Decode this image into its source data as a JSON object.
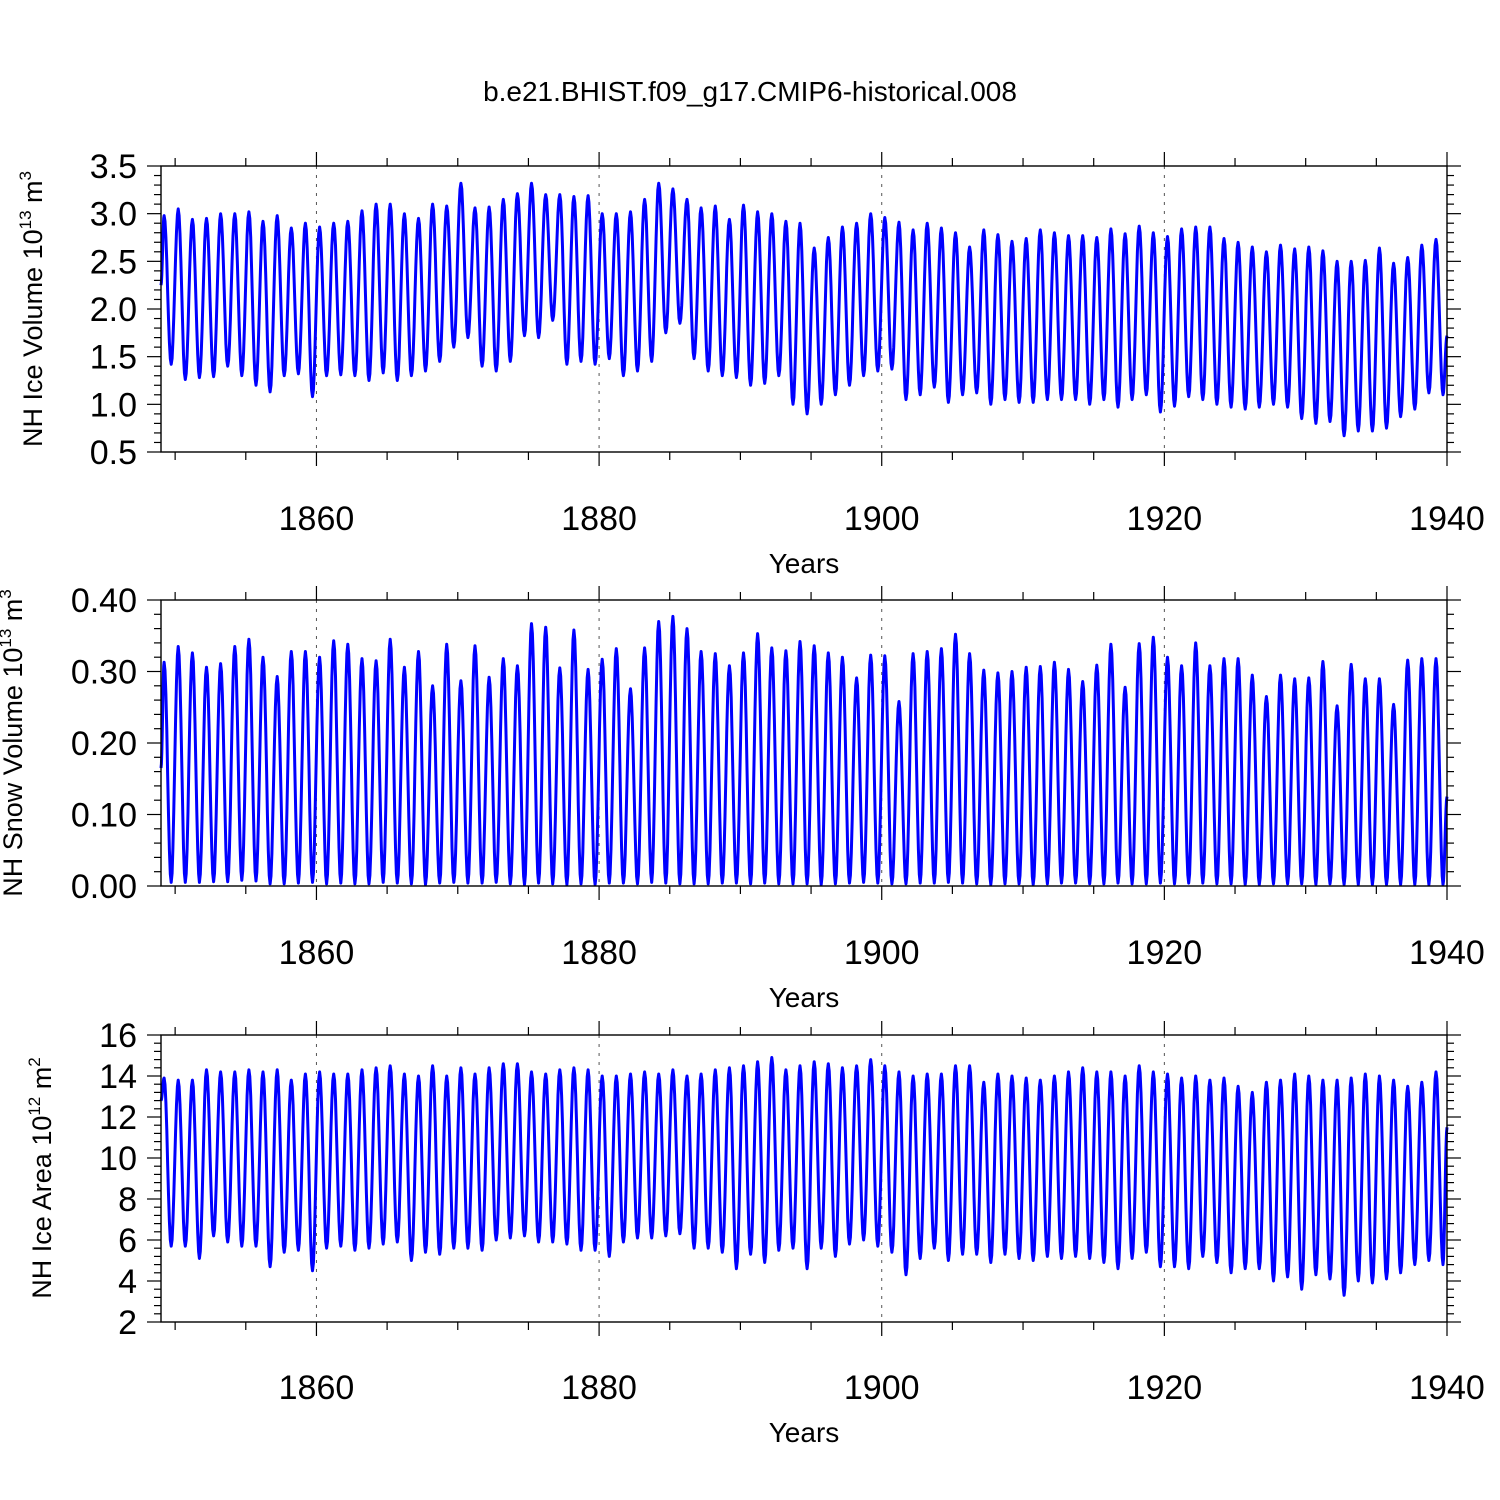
{
  "figure": {
    "title": "b.e21.BHIST.f09_g17.CMIP6-historical.008",
    "series_color": "#0000ff"
  },
  "chart_data": [
    {
      "type": "line",
      "title": "b.e21.BHIST.f09_g17.CMIP6-historical.008",
      "xlabel": "Years",
      "ylabel": {
        "prefix": "NH Ice Volume 10",
        "exponent": "13",
        "middle": " m",
        "unit_exponent": "3"
      },
      "xlim": [
        1849,
        1940
      ],
      "ylim": [
        0.5,
        3.5
      ],
      "xticks": [
        1860,
        1880,
        1900,
        1920,
        1940
      ],
      "xtick_labels": [
        "1860",
        "1880",
        "1900",
        "1920",
        "1940"
      ],
      "yticks": [
        0.5,
        1.0,
        1.5,
        2.0,
        2.5,
        3.0,
        3.5
      ],
      "ytick_labels": [
        "0.5",
        "1.0",
        "1.5",
        "2.0",
        "2.5",
        "3.0",
        "3.5"
      ],
      "grid_x": true,
      "seasonal_cycle": "annual",
      "start": {
        "x": 1849.0,
        "y": 2.25
      },
      "end": {
        "x": 1940.0,
        "y": 1.72
      },
      "annual_max": [
        2.98,
        3.05,
        2.94,
        2.95,
        3.0,
        3.0,
        3.02,
        2.92,
        2.98,
        2.85,
        2.9,
        2.86,
        2.9,
        2.92,
        3.03,
        3.1,
        3.1,
        3.0,
        2.95,
        3.1,
        3.08,
        3.32,
        3.06,
        3.07,
        3.15,
        3.21,
        3.32,
        3.2,
        3.2,
        3.18,
        3.19,
        3.0,
        3.0,
        3.02,
        3.15,
        3.32,
        3.26,
        3.15,
        3.06,
        3.08,
        2.94,
        3.09,
        3.02,
        3.0,
        2.92,
        2.9,
        2.64,
        2.75,
        2.86,
        2.9,
        3.0,
        2.96,
        2.91,
        2.83,
        2.9,
        2.85,
        2.8,
        2.65,
        2.83,
        2.78,
        2.71,
        2.74,
        2.83,
        2.8,
        2.77,
        2.77,
        2.75,
        2.84,
        2.79,
        2.87,
        2.8,
        2.76,
        2.84,
        2.86,
        2.86,
        2.74,
        2.7,
        2.65,
        2.6,
        2.67,
        2.63,
        2.65,
        2.61,
        2.5,
        2.5,
        2.51,
        2.64,
        2.48,
        2.54,
        2.67,
        2.73
      ],
      "annual_min": [
        1.42,
        1.26,
        1.28,
        1.29,
        1.4,
        1.3,
        1.2,
        1.13,
        1.3,
        1.32,
        1.08,
        1.3,
        1.31,
        1.3,
        1.25,
        1.33,
        1.25,
        1.3,
        1.35,
        1.45,
        1.6,
        1.7,
        1.4,
        1.35,
        1.45,
        1.72,
        1.7,
        1.88,
        1.42,
        1.45,
        1.42,
        1.48,
        1.3,
        1.35,
        1.45,
        1.75,
        1.85,
        1.48,
        1.35,
        1.3,
        1.28,
        1.2,
        1.22,
        1.3,
        1.0,
        0.9,
        1.0,
        1.1,
        1.2,
        1.3,
        1.35,
        1.37,
        1.05,
        1.1,
        1.18,
        1.02,
        1.1,
        1.12,
        1.0,
        1.05,
        1.02,
        1.02,
        1.05,
        1.05,
        1.05,
        1.0,
        1.05,
        0.97,
        1.05,
        1.1,
        0.92,
        0.98,
        1.08,
        1.05,
        1.0,
        0.97,
        0.95,
        0.97,
        1.0,
        0.97,
        0.85,
        0.8,
        0.82,
        0.67,
        0.72,
        0.72,
        0.75,
        0.87,
        0.95,
        1.12,
        1.1
      ]
    },
    {
      "type": "line",
      "xlabel": "Years",
      "ylabel": {
        "prefix": "NH Snow Volume 10",
        "exponent": "13",
        "middle": " m",
        "unit_exponent": "3"
      },
      "xlim": [
        1849,
        1940
      ],
      "ylim": [
        0.0,
        0.4
      ],
      "xticks": [
        1860,
        1880,
        1900,
        1920,
        1940
      ],
      "xtick_labels": [
        "1860",
        "1880",
        "1900",
        "1920",
        "1940"
      ],
      "yticks": [
        0.0,
        0.1,
        0.2,
        0.3,
        0.4
      ],
      "ytick_labels": [
        "0.00",
        "0.10",
        "0.20",
        "0.30",
        "0.40"
      ],
      "grid_x": true,
      "seasonal_cycle": "annual",
      "start": {
        "x": 1849.0,
        "y": 0.165
      },
      "end": {
        "x": 1940.0,
        "y": 0.125
      },
      "annual_max": [
        0.313,
        0.335,
        0.326,
        0.306,
        0.311,
        0.335,
        0.345,
        0.32,
        0.293,
        0.328,
        0.328,
        0.32,
        0.343,
        0.338,
        0.318,
        0.315,
        0.345,
        0.306,
        0.328,
        0.28,
        0.338,
        0.287,
        0.336,
        0.292,
        0.318,
        0.308,
        0.367,
        0.362,
        0.305,
        0.358,
        0.303,
        0.317,
        0.332,
        0.276,
        0.333,
        0.37,
        0.377,
        0.36,
        0.328,
        0.325,
        0.308,
        0.326,
        0.353,
        0.333,
        0.329,
        0.342,
        0.336,
        0.326,
        0.32,
        0.291,
        0.323,
        0.322,
        0.258,
        0.325,
        0.328,
        0.332,
        0.352,
        0.325,
        0.302,
        0.298,
        0.3,
        0.306,
        0.307,
        0.313,
        0.303,
        0.286,
        0.309,
        0.338,
        0.278,
        0.339,
        0.348,
        0.32,
        0.308,
        0.34,
        0.308,
        0.318,
        0.318,
        0.295,
        0.265,
        0.295,
        0.29,
        0.291,
        0.314,
        0.252,
        0.31,
        0.29,
        0.29,
        0.254,
        0.316,
        0.318,
        0.318
      ],
      "annual_min": [
        0.005,
        0.005,
        0.005,
        0.006,
        0.006,
        0.008,
        0.007,
        0.003,
        0.003,
        0.004,
        0.005,
        0.003,
        0.004,
        0.003,
        0.003,
        0.005,
        0.004,
        0.003,
        0.002,
        0.004,
        0.005,
        0.004,
        0.004,
        0.005,
        0.003,
        0.002,
        0.004,
        0.003,
        0.002,
        0.003,
        0.002,
        0.004,
        0.004,
        0.003,
        0.005,
        0.004,
        0.003,
        0.003,
        0.003,
        0.004,
        0.004,
        0.003,
        0.004,
        0.003,
        0.003,
        0.003,
        0.002,
        0.003,
        0.004,
        0.005,
        0.004,
        0.003,
        0.003,
        0.004,
        0.004,
        0.005,
        0.004,
        0.003,
        0.002,
        0.003,
        0.003,
        0.002,
        0.003,
        0.004,
        0.004,
        0.003,
        0.003,
        0.004,
        0.003,
        0.003,
        0.004,
        0.003,
        0.004,
        0.004,
        0.003,
        0.003,
        0.002,
        0.002,
        0.003,
        0.003,
        0.003,
        0.002,
        0.003,
        0.002,
        0.002,
        0.002,
        0.002,
        0.002,
        0.002,
        0.002,
        0.002
      ]
    },
    {
      "type": "line",
      "xlabel": "Years",
      "ylabel": {
        "prefix": "NH Ice Area 10",
        "exponent": "12",
        "middle": " m",
        "unit_exponent": "2"
      },
      "xlim": [
        1849,
        1940
      ],
      "ylim": [
        2,
        16
      ],
      "xticks": [
        1860,
        1880,
        1900,
        1920,
        1940
      ],
      "xtick_labels": [
        "1860",
        "1880",
        "1900",
        "1920",
        "1940"
      ],
      "yticks": [
        2,
        4,
        6,
        8,
        10,
        12,
        14,
        16
      ],
      "ytick_labels": [
        "2",
        "4",
        "6",
        "8",
        "10",
        "12",
        "14",
        "16"
      ],
      "grid_x": true,
      "seasonal_cycle": "annual",
      "start": {
        "x": 1849.0,
        "y": 12.8
      },
      "end": {
        "x": 1940.0,
        "y": 11.5
      },
      "annual_max": [
        13.9,
        13.8,
        13.8,
        14.3,
        14.2,
        14.2,
        14.3,
        14.2,
        14.3,
        13.8,
        14.1,
        14.2,
        14.1,
        14.1,
        14.3,
        14.4,
        14.5,
        14.1,
        14.0,
        14.5,
        14.0,
        14.4,
        14.1,
        14.4,
        14.6,
        14.6,
        14.2,
        14.1,
        14.3,
        14.4,
        14.3,
        14.0,
        14.0,
        14.1,
        14.2,
        14.1,
        14.3,
        14.0,
        14.1,
        14.3,
        14.4,
        14.5,
        14.7,
        14.9,
        14.3,
        14.5,
        14.7,
        14.6,
        14.4,
        14.5,
        14.8,
        14.5,
        14.2,
        14.0,
        14.1,
        14.1,
        14.5,
        14.5,
        13.7,
        14.1,
        14.0,
        13.9,
        13.8,
        14.0,
        14.2,
        14.4,
        14.2,
        14.2,
        14.0,
        14.5,
        14.2,
        14.1,
        13.9,
        14.0,
        13.8,
        13.9,
        13.5,
        13.2,
        13.7,
        13.8,
        14.1,
        14.0,
        13.8,
        13.8,
        13.9,
        14.1,
        14.0,
        13.8,
        13.5,
        13.7,
        14.2
      ],
      "annual_min": [
        5.7,
        5.7,
        5.1,
        6.2,
        5.9,
        5.7,
        5.7,
        4.7,
        5.4,
        5.5,
        4.5,
        5.6,
        5.7,
        5.5,
        5.6,
        5.8,
        5.9,
        5.0,
        5.4,
        5.3,
        5.6,
        5.6,
        5.5,
        6.0,
        6.1,
        6.2,
        5.9,
        5.9,
        5.8,
        5.5,
        5.5,
        5.2,
        5.9,
        6.1,
        6.1,
        6.2,
        6.3,
        5.6,
        5.6,
        5.4,
        4.6,
        5.3,
        4.9,
        5.5,
        5.6,
        4.6,
        5.6,
        5.2,
        5.8,
        6.0,
        5.7,
        5.4,
        4.3,
        5.1,
        5.6,
        5.0,
        5.3,
        5.3,
        4.9,
        5.3,
        5.1,
        5.0,
        5.2,
        5.1,
        5.2,
        5.1,
        4.9,
        4.6,
        5.1,
        5.4,
        4.7,
        4.7,
        4.6,
        5.2,
        4.9,
        4.4,
        4.6,
        4.6,
        4.0,
        4.2,
        3.6,
        4.3,
        4.1,
        3.3,
        4.0,
        3.9,
        4.1,
        4.4,
        4.8,
        5.0,
        4.8
      ]
    }
  ]
}
